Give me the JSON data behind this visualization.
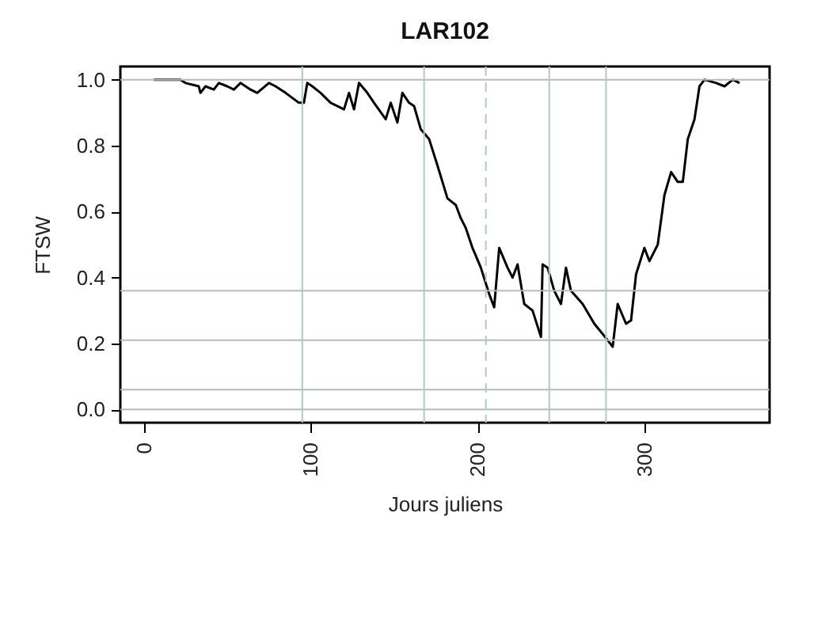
{
  "chart_data": {
    "type": "line",
    "title": "LAR102",
    "xlabel": "Jours juliens",
    "ylabel": "FTSW",
    "xlim": [
      -14,
      375
    ],
    "xticks": [
      0,
      100,
      200,
      300
    ],
    "ylim": [
      -0.04,
      1.04
    ],
    "yticks": [
      {
        "value": 0,
        "label": "0.0"
      },
      0.2,
      0.4,
      0.6,
      0.8,
      {
        "value": 1,
        "label": "1.0"
      }
    ],
    "x": [
      6,
      16,
      22,
      25,
      33,
      34,
      37,
      42,
      45,
      50,
      54,
      58,
      64,
      68,
      75,
      79,
      85,
      93,
      96,
      98,
      101,
      106,
      112,
      120,
      123,
      126,
      129,
      134,
      138,
      145,
      148,
      152,
      155,
      159,
      162,
      166,
      171,
      176,
      182,
      187,
      190,
      193,
      197,
      202,
      207,
      210,
      213,
      218,
      221,
      224,
      228,
      233,
      238,
      239,
      242,
      246,
      250,
      253,
      256,
      263,
      270,
      278,
      281,
      284,
      289,
      292,
      295,
      300,
      303,
      308,
      312,
      316,
      320,
      323,
      326,
      330,
      333,
      336,
      343,
      348,
      353,
      357
    ],
    "series": [
      {
        "color": "#000000",
        "values": [
          1.0,
          1.0,
          1.0,
          0.99,
          0.98,
          0.96,
          0.98,
          0.97,
          0.99,
          0.98,
          0.97,
          0.99,
          0.97,
          0.96,
          0.99,
          0.98,
          0.96,
          0.93,
          0.93,
          0.99,
          0.98,
          0.96,
          0.93,
          0.91,
          0.96,
          0.91,
          0.99,
          0.96,
          0.93,
          0.88,
          0.93,
          0.87,
          0.96,
          0.93,
          0.92,
          0.85,
          0.82,
          0.74,
          0.64,
          0.62,
          0.58,
          0.55,
          0.49,
          0.43,
          0.35,
          0.31,
          0.49,
          0.43,
          0.4,
          0.44,
          0.32,
          0.3,
          0.22,
          0.44,
          0.43,
          0.36,
          0.32,
          0.43,
          0.36,
          0.32,
          0.26,
          0.21,
          0.19,
          0.32,
          0.26,
          0.27,
          0.41,
          0.49,
          0.45,
          0.5,
          0.65,
          0.72,
          0.69,
          0.69,
          0.82,
          0.88,
          0.98,
          1.0,
          0.99,
          0.98,
          1.0,
          0.99
        ]
      }
    ],
    "ref_lines": [
      {
        "axis": "y",
        "value": 1.0,
        "color": "#b4bcbc"
      },
      {
        "axis": "y",
        "value": 0.36,
        "color": "#b4bcbc"
      },
      {
        "axis": "y",
        "value": 0.21,
        "color": "#b4bcbc"
      },
      {
        "axis": "y",
        "value": 0.06,
        "color": "#b4bcbc"
      },
      {
        "axis": "y",
        "value": 0.0,
        "color": "#b4bcbc"
      },
      {
        "axis": "x",
        "value": 95,
        "color": "#b0c8c8"
      },
      {
        "axis": "x",
        "value": 168,
        "color": "#b0c8c8"
      },
      {
        "axis": "x",
        "value": 205,
        "color": "#b0c8c8",
        "line_style": "dashed"
      },
      {
        "axis": "x",
        "value": 243,
        "color": "#b0c8c8"
      },
      {
        "axis": "x",
        "value": 277,
        "color": "#b0c8c8"
      }
    ],
    "line_style": "solid",
    "marker": "none"
  }
}
